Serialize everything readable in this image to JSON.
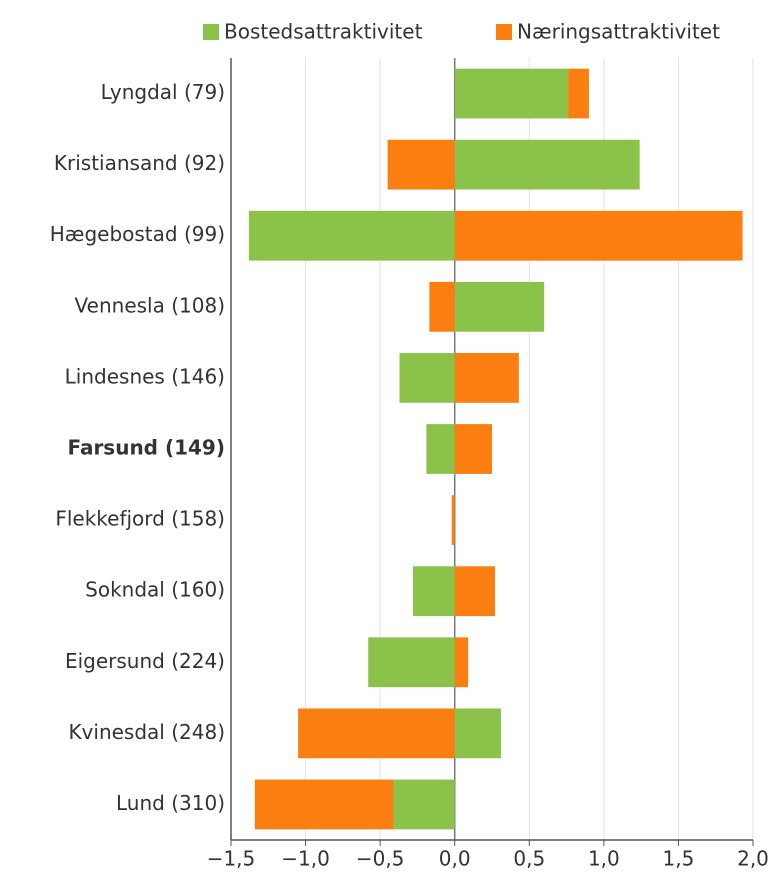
{
  "chart_data": {
    "type": "diverging_stacked_bar",
    "categories": [
      "Lyngdal (79)",
      "Kristiansand (92)",
      "Hægebostad (99)",
      "Vennesla (108)",
      "Lindesnes (146)",
      "Farsund (149)",
      "Flekkefjord (158)",
      "Sokndal (160)",
      "Eigersund (224)",
      "Kvinesdal (248)",
      "Lund (310)"
    ],
    "highlight_category": "Farsund (149)",
    "series": [
      {
        "name": "Bostedsattraktivitet",
        "color": "#8bc34a",
        "values": [
          0.76,
          1.24,
          -1.38,
          0.6,
          -0.37,
          -0.19,
          0,
          -0.28,
          -0.58,
          0.31,
          -0.41
        ]
      },
      {
        "name": "Næringsattraktivitet",
        "color": "#fb7e10",
        "values": [
          0.14,
          -0.45,
          1.93,
          -0.17,
          0.43,
          0.25,
          -0.02,
          0.27,
          0.09,
          -1.05,
          -0.93
        ]
      }
    ],
    "xlim": [
      -1.5,
      2.0
    ],
    "xticks": [
      {
        "value": -1.5,
        "label": "−1,5"
      },
      {
        "value": -1.0,
        "label": "−1,0"
      },
      {
        "value": -0.5,
        "label": "−0,5"
      },
      {
        "value": 0,
        "label": "0,0"
      },
      {
        "value": 0.5,
        "label": "0,5"
      },
      {
        "value": 1.0,
        "label": "1,0"
      },
      {
        "value": 1.5,
        "label": "1,5"
      },
      {
        "value": 2.0,
        "label": "2,0"
      }
    ],
    "grid": true,
    "legend": "top-right"
  }
}
